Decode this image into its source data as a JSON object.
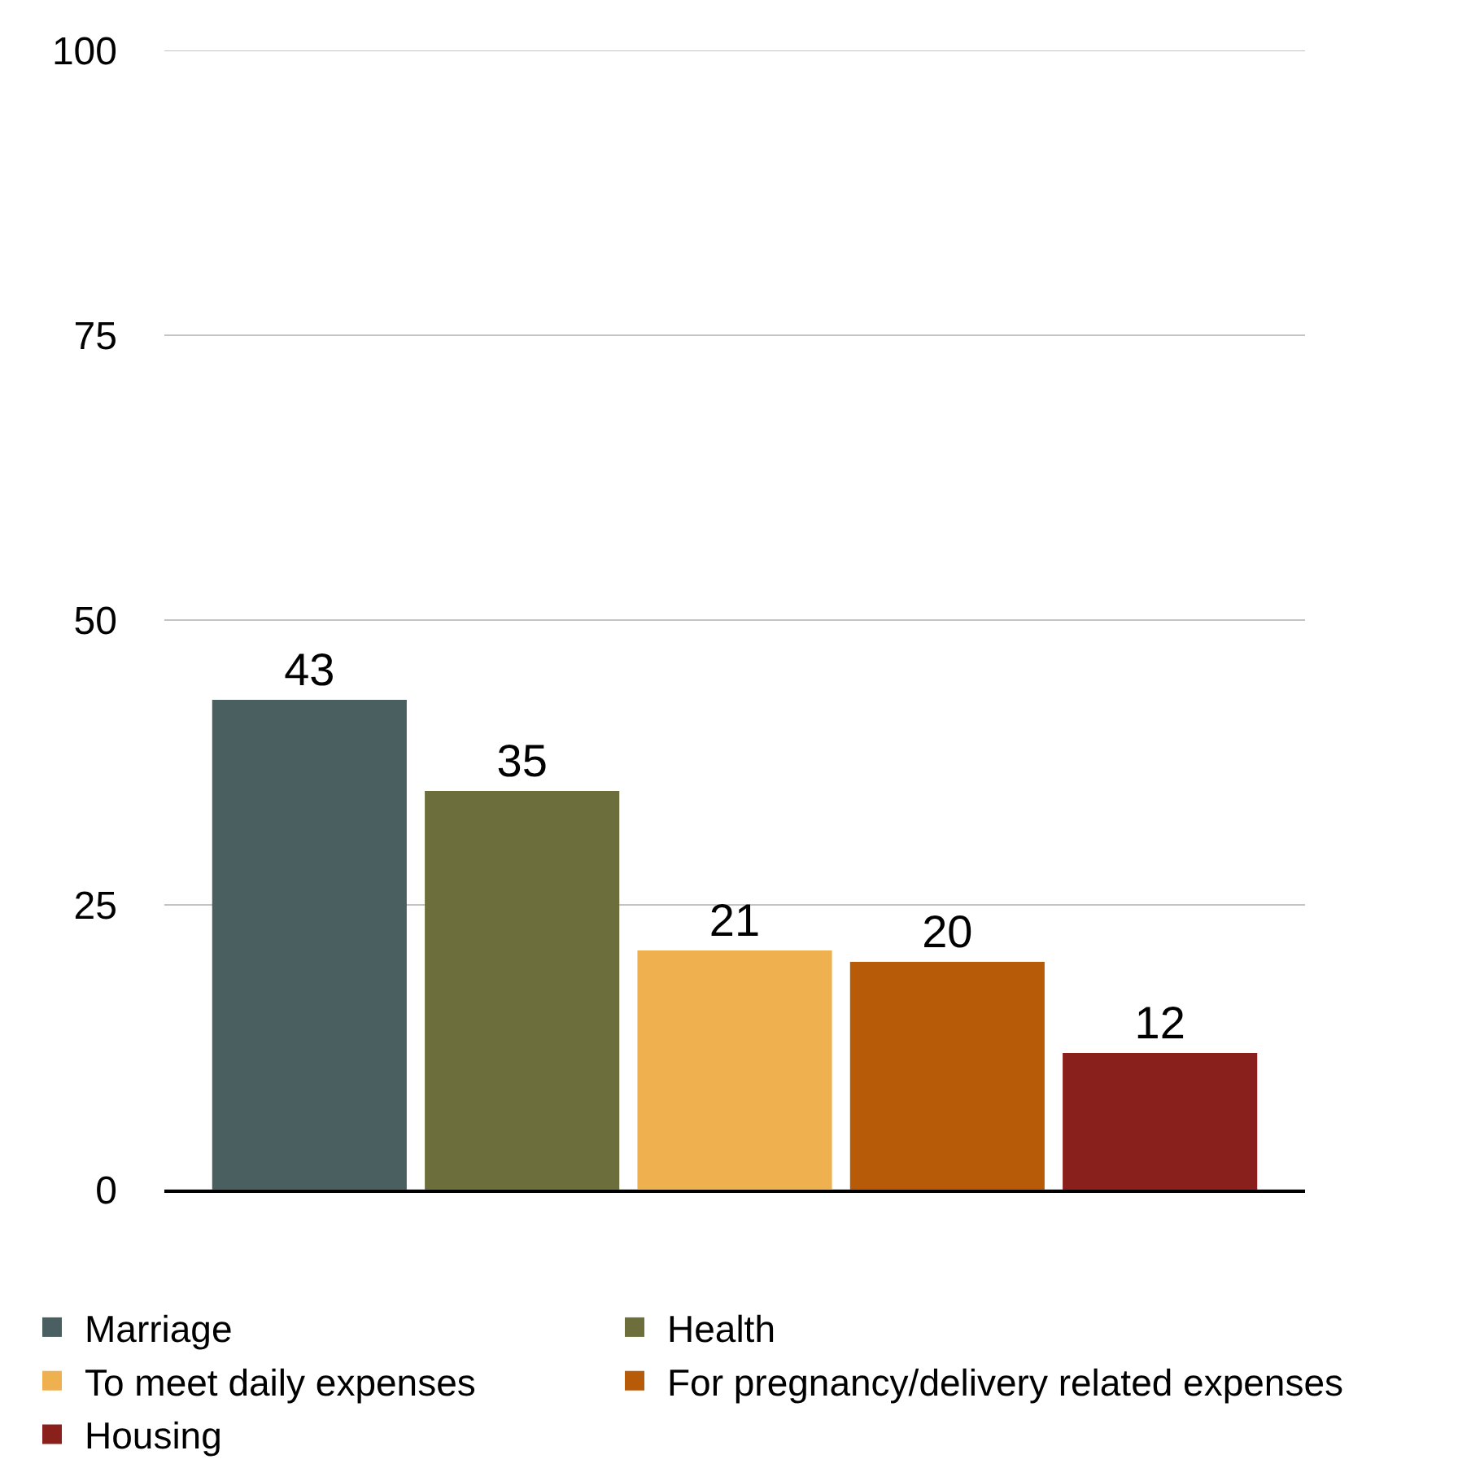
{
  "chart_data": {
    "type": "bar",
    "categories": [
      null
    ],
    "series": [
      {
        "name": "Marriage",
        "color": "#4a5f60",
        "values": [
          43
        ]
      },
      {
        "name": "Health",
        "color": "#6c6f3b",
        "values": [
          35
        ]
      },
      {
        "name": "To meet daily expenses",
        "color": "#efb050",
        "values": [
          21
        ]
      },
      {
        "name": "For pregnancy/delivery related expenses",
        "color": "#b85b08",
        "values": [
          20
        ]
      },
      {
        "name": "Housing",
        "color": "#89201c",
        "values": [
          12
        ]
      }
    ],
    "ylim": [
      0,
      100
    ],
    "yticks": [
      0,
      25,
      50,
      75,
      100
    ],
    "data_labels": true,
    "grid": "y",
    "legend": "bottom",
    "tick_labels": "y"
  }
}
